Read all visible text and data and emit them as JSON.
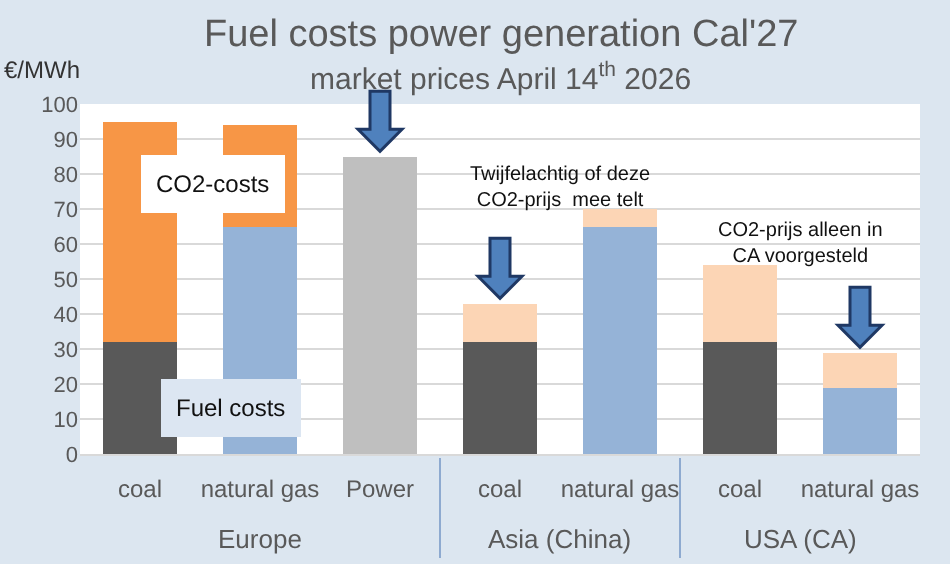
{
  "chart_data": {
    "type": "bar",
    "title": "Fuel costs power generation Cal'27",
    "subtitle": "market prices April 14$^{th}$ 2026",
    "ylabel": "€/MWh",
    "categories": [
      "coal",
      "natural gas",
      "Power",
      "coal",
      "natural gas",
      "coal",
      "natural gas"
    ],
    "series": [
      {
        "name": "Fuel costs",
        "colors": [
          "#595959",
          "#95b3d7",
          null,
          "#595959",
          "#95b3d7",
          "#595959",
          "#95b3d7"
        ],
        "values": [
          32,
          65,
          null,
          32,
          65,
          32,
          19
        ]
      },
      {
        "name": "CO2-costs",
        "colors": [
          "#f79646",
          "#f79646",
          null,
          "#fcd5b5",
          "#fcd5b5",
          "#fcd5b5",
          "#fcd5b5"
        ],
        "values": [
          63,
          29,
          null,
          11,
          5,
          22,
          10
        ]
      },
      {
        "color": "#bfbfbf",
        "values": [
          null,
          null,
          85,
          null,
          null,
          null,
          null
        ]
      }
    ],
    "stacked": true,
    "ylim": [
      0,
      100
    ],
    "yticks": [
      0,
      10,
      20,
      30,
      40,
      50,
      60,
      70,
      80,
      90,
      100
    ],
    "grid": "y",
    "legend": false,
    "annotations": [
      "Europe",
      "Asia (China)",
      "USA (CA)",
      "Twijfelachtig of deze CO2-prijs  mee telt",
      "CO2-prijs alleen in CA voorgesteld"
    ]
  }
}
